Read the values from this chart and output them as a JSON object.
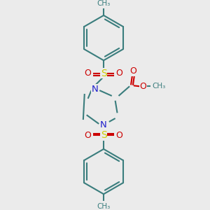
{
  "background_color": "#ebebeb",
  "bond_color": "#3a7d7d",
  "N_color": "#2020cc",
  "S_color": "#cccc00",
  "O_color": "#cc0000",
  "line_width": 1.5,
  "fig_size": [
    3.0,
    3.0
  ],
  "dpi": 100,
  "xlim": [
    0,
    300
  ],
  "ylim": [
    0,
    300
  ],
  "scale": 1.0
}
